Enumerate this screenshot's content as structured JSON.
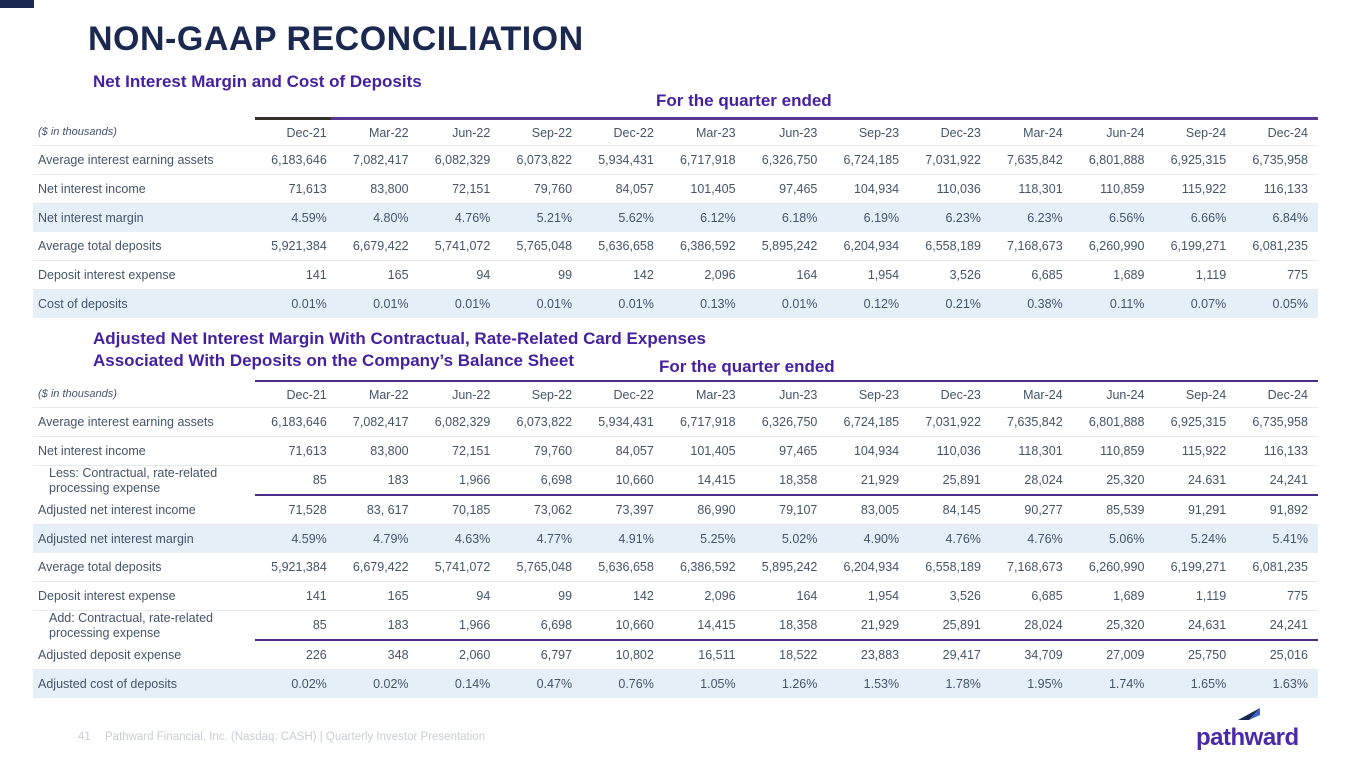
{
  "slide": {
    "title": "NON-GAAP RECONCILIATION",
    "footer": {
      "page": "41",
      "text": "Pathward Financial, Inc. (Nasdaq: CASH) | Quarterly Investor Presentation",
      "logo_word": "pathward"
    }
  },
  "colors": {
    "title_navy": "#1B2950",
    "heading_purple": "#45219E",
    "table_rule_purple": "#5A3795",
    "subtotal_rule_purple": "#4A2C86",
    "highlight_row_blue": "#E5EFF8",
    "table_text": "#44546A",
    "footer_gray": "#C8CDD4",
    "logo_purple": "#4B2AA6"
  },
  "tables": [
    {
      "heading": "Net Interest Margin and Cost of Deposits",
      "quarter_label": "For the quarter ended",
      "unit_note": "($ in thousands)",
      "columns": [
        "Dec-21",
        "Mar-22",
        "Jun-22",
        "Sep-22",
        "Dec-22",
        "Mar-23",
        "Jun-23",
        "Sep-23",
        "Dec-23",
        "Mar-24",
        "Jun-24",
        "Sep-24",
        "Dec-24"
      ],
      "rows": [
        {
          "label": "Average interest earning assets",
          "values": [
            "6,183,646",
            "7,082,417",
            "6,082,329",
            "6,073,822",
            "5,934,431",
            "6,717,918",
            "6,326,750",
            "6,724,185",
            "7,031,922",
            "7,635,842",
            "6,801,888",
            "6,925,315",
            "6,735,958"
          ]
        },
        {
          "label": "Net interest income",
          "values": [
            "71,613",
            "83,800",
            "72,151",
            "79,760",
            "84,057",
            "101,405",
            "97,465",
            "104,934",
            "110,036",
            "118,301",
            "110,859",
            "115,922",
            "116,133"
          ]
        },
        {
          "label": "Net interest margin",
          "highlight": true,
          "values": [
            "4.59%",
            "4.80%",
            "4.76%",
            "5.21%",
            "5.62%",
            "6.12%",
            "6.18%",
            "6.19%",
            "6.23%",
            "6.23%",
            "6.56%",
            "6.66%",
            "6.84%"
          ]
        },
        {
          "label": "Average total deposits",
          "values": [
            "5,921,384",
            "6,679,422",
            "5,741,072",
            "5,765,048",
            "5,636,658",
            "6,386,592",
            "5,895,242",
            "6,204,934",
            "6,558,189",
            "7,168,673",
            "6,260,990",
            "6,199,271",
            "6,081,235"
          ]
        },
        {
          "label": "Deposit interest expense",
          "values": [
            "141",
            "165",
            "94",
            "99",
            "142",
            "2,096",
            "164",
            "1,954",
            "3,526",
            "6,685",
            "1,689",
            "1,119",
            "775"
          ]
        },
        {
          "label": "Cost of deposits",
          "highlight": true,
          "values": [
            "0.01%",
            "0.01%",
            "0.01%",
            "0.01%",
            "0.01%",
            "0.13%",
            "0.01%",
            "0.12%",
            "0.21%",
            "0.38%",
            "0.11%",
            "0.07%",
            "0.05%"
          ]
        }
      ]
    },
    {
      "heading_line1": "Adjusted Net Interest Margin With Contractual, Rate-Related Card Expenses",
      "heading_line2": "Associated With Deposits on the Company’s Balance Sheet",
      "quarter_label": "For the quarter ended",
      "unit_note": "($ in thousands)",
      "columns": [
        "Dec-21",
        "Mar-22",
        "Jun-22",
        "Sep-22",
        "Dec-22",
        "Mar-23",
        "Jun-23",
        "Sep-23",
        "Dec-23",
        "Mar-24",
        "Jun-24",
        "Sep-24",
        "Dec-24"
      ],
      "rows": [
        {
          "label": "Average interest earning assets",
          "values": [
            "6,183,646",
            "7,082,417",
            "6,082,329",
            "6,073,822",
            "5,934,431",
            "6,717,918",
            "6,326,750",
            "6,724,185",
            "7,031,922",
            "7,635,842",
            "6,801,888",
            "6,925,315",
            "6,735,958"
          ]
        },
        {
          "label": "Net interest income",
          "values": [
            "71,613",
            "83,800",
            "72,151",
            "79,760",
            "84,057",
            "101,405",
            "97,465",
            "104,934",
            "110,036",
            "118,301",
            "110,859",
            "115,922",
            "116,133"
          ]
        },
        {
          "label": "Less: Contractual, rate-related processing expense",
          "indent": true,
          "rule_below": true,
          "values": [
            "85",
            "183",
            "1,966",
            "6,698",
            "10,660",
            "14,415",
            "18,358",
            "21,929",
            "25,891",
            "28,024",
            "25,320",
            "24.631",
            "24,241"
          ]
        },
        {
          "label": "Adjusted net interest income",
          "values": [
            "71,528",
            "83, 617",
            "70,185",
            "73,062",
            "73,397",
            "86,990",
            "79,107",
            "83,005",
            "84,145",
            "90,277",
            "85,539",
            "91,291",
            "91,892"
          ]
        },
        {
          "label": "Adjusted net interest margin",
          "highlight": true,
          "values": [
            "4.59%",
            "4.79%",
            "4.63%",
            "4.77%",
            "4.91%",
            "5.25%",
            "5.02%",
            "4.90%",
            "4.76%",
            "4.76%",
            "5.06%",
            "5.24%",
            "5.41%"
          ]
        },
        {
          "label": "Average total deposits",
          "values": [
            "5,921,384",
            "6,679,422",
            "5,741,072",
            "5,765,048",
            "5,636,658",
            "6,386,592",
            "5,895,242",
            "6,204,934",
            "6,558,189",
            "7,168,673",
            "6,260,990",
            "6,199,271",
            "6,081,235"
          ]
        },
        {
          "label": "Deposit interest expense",
          "values": [
            "141",
            "165",
            "94",
            "99",
            "142",
            "2,096",
            "164",
            "1,954",
            "3,526",
            "6,685",
            "1,689",
            "1,119",
            "775"
          ]
        },
        {
          "label": "Add: Contractual, rate-related processing expense",
          "indent": true,
          "rule_below": true,
          "values": [
            "85",
            "183",
            "1,966",
            "6,698",
            "10,660",
            "14,415",
            "18,358",
            "21,929",
            "25,891",
            "28,024",
            "25,320",
            "24,631",
            "24,241"
          ]
        },
        {
          "label": "Adjusted deposit expense",
          "values": [
            "226",
            "348",
            "2,060",
            "6,797",
            "10,802",
            "16,511",
            "18,522",
            "23,883",
            "29,417",
            "34,709",
            "27,009",
            "25,750",
            "25,016"
          ]
        },
        {
          "label": "Adjusted cost of deposits",
          "highlight": true,
          "values": [
            "0.02%",
            "0.02%",
            "0.14%",
            "0.47%",
            "0.76%",
            "1.05%",
            "1.26%",
            "1.53%",
            "1.78%",
            "1.95%",
            "1.74%",
            "1.65%",
            "1.63%"
          ]
        }
      ]
    }
  ]
}
